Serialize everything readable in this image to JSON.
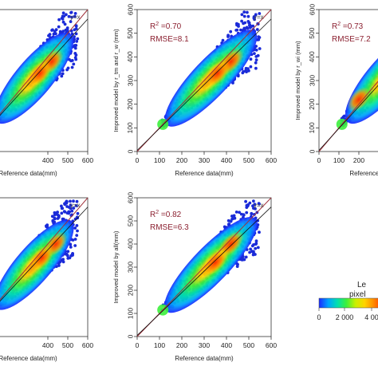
{
  "figure": {
    "colors": {
      "density_ramp": [
        "#1c2aff",
        "#00a2ff",
        "#00e0b0",
        "#3cf03c",
        "#c8f000",
        "#ffd400",
        "#ff8a00",
        "#ff3000"
      ],
      "point": "#1a2ad8",
      "identity_line": "#a0303a",
      "fit_line": "#111111",
      "annotation": "#8b2030"
    }
  },
  "chart_data": [
    {
      "type": "scatter",
      "subtype": "density-scatter",
      "title": "",
      "identity_label": "y=x",
      "annotation": {
        "r2": "",
        "rmse": ""
      },
      "xlabel": "Reference data(mm)",
      "ylabel": "",
      "xlim": [
        0,
        600
      ],
      "ylim": [
        0,
        600
      ],
      "xticks": [
        "400",
        "500",
        "600"
      ],
      "yticks": [],
      "density_centers": [
        {
          "x": 420,
          "y": 380
        },
        {
          "x": 360,
          "y": 330
        }
      ]
    },
    {
      "type": "scatter",
      "subtype": "density-scatter",
      "title": "",
      "identity_label": "y=x",
      "annotation": {
        "r2": "0.70",
        "rmse": "8.1"
      },
      "xlabel": "Reference data(mm)",
      "ylabel": "Improved model by r_tm and r_w (mm)",
      "xlim": [
        0,
        600
      ],
      "ylim": [
        0,
        600
      ],
      "xticks": [
        "0",
        "100",
        "200",
        "300",
        "400",
        "500",
        "600"
      ],
      "yticks": [
        "0",
        "100",
        "200",
        "300",
        "400",
        "500",
        "600"
      ],
      "density_centers": [
        {
          "x": 420,
          "y": 380
        },
        {
          "x": 360,
          "y": 330
        }
      ]
    },
    {
      "type": "scatter",
      "subtype": "density-scatter",
      "title": "",
      "identity_label": "",
      "annotation": {
        "r2": "0.73",
        "rmse": "7.2"
      },
      "xlabel": "Reference data(mm)",
      "ylabel": "Improved model by r_wi (mm)",
      "xlim": [
        0,
        600
      ],
      "ylim": [
        0,
        600
      ],
      "xticks": [
        "0",
        "100",
        "200"
      ],
      "yticks": [
        "0",
        "100",
        "200",
        "300",
        "400",
        "500",
        "600"
      ],
      "density_centers": [
        {
          "x": 200,
          "y": 220
        }
      ]
    },
    {
      "type": "scatter",
      "subtype": "density-scatter",
      "title": "",
      "identity_label": "y=x",
      "annotation": {
        "r2": "",
        "rmse": ""
      },
      "xlabel": "Reference data(mm)",
      "ylabel": "",
      "xlim": [
        0,
        600
      ],
      "ylim": [
        0,
        600
      ],
      "xticks": [
        "400",
        "500",
        "600"
      ],
      "yticks": [],
      "density_centers": [
        {
          "x": 440,
          "y": 400
        },
        {
          "x": 370,
          "y": 340
        }
      ]
    },
    {
      "type": "scatter",
      "subtype": "density-scatter",
      "title": "",
      "identity_label": "y=x",
      "annotation": {
        "r2": "0.82",
        "rmse": "6.3"
      },
      "xlabel": "Reference data(mm)",
      "ylabel": "Improved model by all(mm)",
      "xlim": [
        0,
        600
      ],
      "ylim": [
        0,
        600
      ],
      "xticks": [
        "0",
        "100",
        "200",
        "300",
        "400",
        "500",
        "600"
      ],
      "yticks": [
        "0",
        "100",
        "200",
        "300",
        "400",
        "500",
        "600"
      ],
      "density_centers": [
        {
          "x": 420,
          "y": 400
        },
        {
          "x": 350,
          "y": 320
        }
      ]
    }
  ],
  "legend": {
    "title_line1": "Le",
    "title_line2": "pixel",
    "ticks": [
      "0",
      "2 000",
      "4 00"
    ]
  }
}
